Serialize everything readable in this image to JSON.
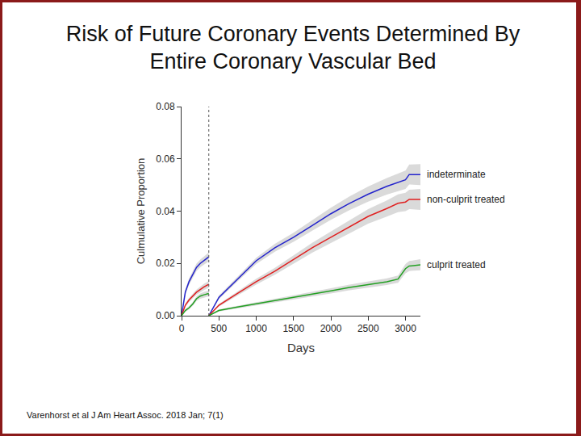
{
  "chart_data": {
    "type": "line",
    "title": "Risk of Future Coronary Events Determined By Entire Coronary Vascular Bed",
    "x_label": "Days",
    "y_label": "Culmulative Proportion",
    "source": "Varenhorst et al J Am Heart Assoc. 2018 Jan; 7(1)",
    "x": [
      0,
      50,
      100,
      150,
      200,
      250,
      300,
      365,
      null,
      365,
      500,
      750,
      1000,
      1250,
      1500,
      1750,
      2000,
      2250,
      2500,
      2750,
      2900,
      3000,
      3050,
      3200
    ],
    "series": [
      {
        "name": "indeterminate",
        "color": "#2323cc",
        "values": [
          0,
          0.009,
          0.013,
          0.016,
          0.0185,
          0.02,
          0.021,
          0.0225,
          null,
          0,
          0.007,
          0.014,
          0.021,
          0.026,
          0.03,
          0.0345,
          0.039,
          0.043,
          0.0465,
          0.0495,
          0.051,
          0.052,
          0.054,
          0.054
        ],
        "lower": [
          0,
          0.008,
          0.0118,
          0.0147,
          0.0171,
          0.0185,
          0.0194,
          0.0208,
          null,
          0,
          0.0063,
          0.0131,
          0.0198,
          0.0245,
          0.0283,
          0.0325,
          0.0367,
          0.0404,
          0.0436,
          0.0463,
          0.0476,
          0.0485,
          0.0502,
          0.05
        ],
        "upper": [
          0,
          0.01,
          0.0142,
          0.0173,
          0.0199,
          0.0215,
          0.0226,
          0.0242,
          null,
          0,
          0.0077,
          0.0149,
          0.0222,
          0.0275,
          0.0317,
          0.0365,
          0.0413,
          0.0456,
          0.0494,
          0.0527,
          0.0544,
          0.0555,
          0.0578,
          0.058
        ]
      },
      {
        "name": "non-culprit treated",
        "color": "#e02020",
        "values": [
          0,
          0.004,
          0.006,
          0.0075,
          0.009,
          0.01,
          0.011,
          0.012,
          null,
          0,
          0.004,
          0.0085,
          0.013,
          0.017,
          0.0215,
          0.026,
          0.03,
          0.034,
          0.038,
          0.041,
          0.043,
          0.0435,
          0.0445,
          0.0445
        ],
        "lower": [
          0,
          0.0034,
          0.0052,
          0.0066,
          0.008,
          0.0089,
          0.0098,
          0.0107,
          null,
          0,
          0.0035,
          0.0077,
          0.0119,
          0.0157,
          0.0199,
          0.0241,
          0.0278,
          0.0315,
          0.0352,
          0.0379,
          0.0396,
          0.04,
          0.0408,
          0.0405
        ],
        "upper": [
          0,
          0.0046,
          0.0068,
          0.0084,
          0.01,
          0.0111,
          0.0122,
          0.0133,
          null,
          0,
          0.0045,
          0.0093,
          0.0141,
          0.0183,
          0.0231,
          0.0279,
          0.0322,
          0.0365,
          0.0408,
          0.0441,
          0.0464,
          0.047,
          0.0482,
          0.0485
        ]
      },
      {
        "name": "culprit treated",
        "color": "#22a022",
        "values": [
          0,
          0.002,
          0.003,
          0.0045,
          0.0065,
          0.0075,
          0.008,
          0.0085,
          null,
          0,
          0.002,
          0.0033,
          0.0045,
          0.0058,
          0.007,
          0.0082,
          0.0095,
          0.0108,
          0.012,
          0.013,
          0.014,
          0.018,
          0.019,
          0.0195
        ],
        "lower": [
          0,
          0.0015,
          0.0024,
          0.0038,
          0.0056,
          0.0065,
          0.0069,
          0.0074,
          null,
          0,
          0.0016,
          0.0028,
          0.0039,
          0.0051,
          0.0062,
          0.0073,
          0.0085,
          0.0097,
          0.0108,
          0.0117,
          0.0126,
          0.0162,
          0.0171,
          0.0174
        ],
        "upper": [
          0,
          0.0025,
          0.0036,
          0.0052,
          0.0074,
          0.0085,
          0.0091,
          0.0096,
          null,
          0,
          0.0024,
          0.0038,
          0.0051,
          0.0065,
          0.0078,
          0.0091,
          0.0105,
          0.0119,
          0.0132,
          0.0143,
          0.0154,
          0.0198,
          0.0209,
          0.0216
        ]
      }
    ],
    "vline": 365,
    "xlim": [
      0,
      3200
    ],
    "xticks": [
      0,
      500,
      1000,
      1500,
      2000,
      2500,
      3000
    ],
    "ylim": [
      0,
      0.08
    ],
    "yticks": [
      {
        "value": 0,
        "label": "0.00"
      },
      {
        "value": 0.02,
        "label": "0.02"
      },
      {
        "value": 0.04,
        "label": "0.04"
      },
      {
        "value": 0.06,
        "label": "0.06"
      },
      {
        "value": 0.08,
        "label": "0.08"
      }
    ],
    "grid": false
  }
}
